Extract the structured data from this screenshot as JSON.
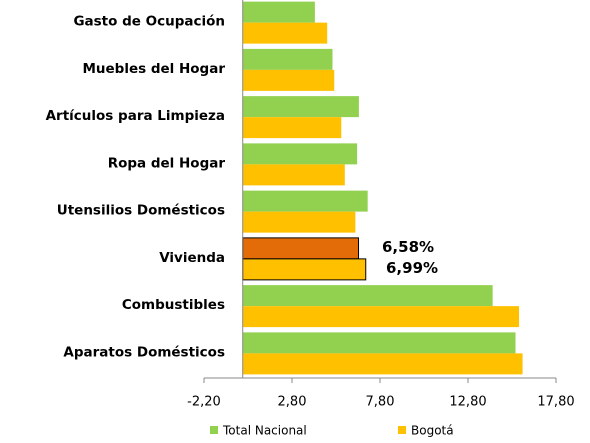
{
  "chart_data": {
    "type": "hbar",
    "categories": [
      "Gasto de Ocupación",
      "Muebles del Hogar",
      "Artículos para Limpieza",
      "Ropa del Hogar",
      "Utensilios Domésticos",
      "Vivienda",
      "Combustibles",
      "Aparatos Domésticos"
    ],
    "series": [
      {
        "name": "Total Nacional",
        "color": "#92d050",
        "colors": [
          "#92d050",
          "#92d050",
          "#92d050",
          "#92d050",
          "#92d050",
          "#e36c09",
          "#92d050",
          "#92d050"
        ],
        "values": [
          4.1,
          5.1,
          6.6,
          6.5,
          7.1,
          6.58,
          14.2,
          15.5
        ],
        "value_labels": [
          null,
          null,
          null,
          null,
          null,
          "6,58%",
          null,
          null
        ]
      },
      {
        "name": "Bogotá",
        "color": "#ffc000",
        "colors": [
          "#ffc000",
          "#ffc000",
          "#ffc000",
          "#ffc000",
          "#ffc000",
          "#ffc000",
          "#ffc000",
          "#ffc000"
        ],
        "values": [
          4.8,
          5.2,
          5.6,
          5.8,
          6.4,
          6.99,
          15.7,
          15.9
        ],
        "value_labels": [
          null,
          null,
          null,
          null,
          null,
          "6,99%",
          null,
          null
        ]
      }
    ],
    "xlim": [
      -2.2,
      17.8
    ],
    "xticks": [
      {
        "value": -2.2,
        "label": "-2,20"
      },
      {
        "value": 2.8,
        "label": "2,80"
      },
      {
        "value": 7.8,
        "label": "7,80"
      },
      {
        "value": 12.8,
        "label": "12,80"
      },
      {
        "value": 17.8,
        "label": "17,80"
      }
    ],
    "legend": "bottom"
  }
}
